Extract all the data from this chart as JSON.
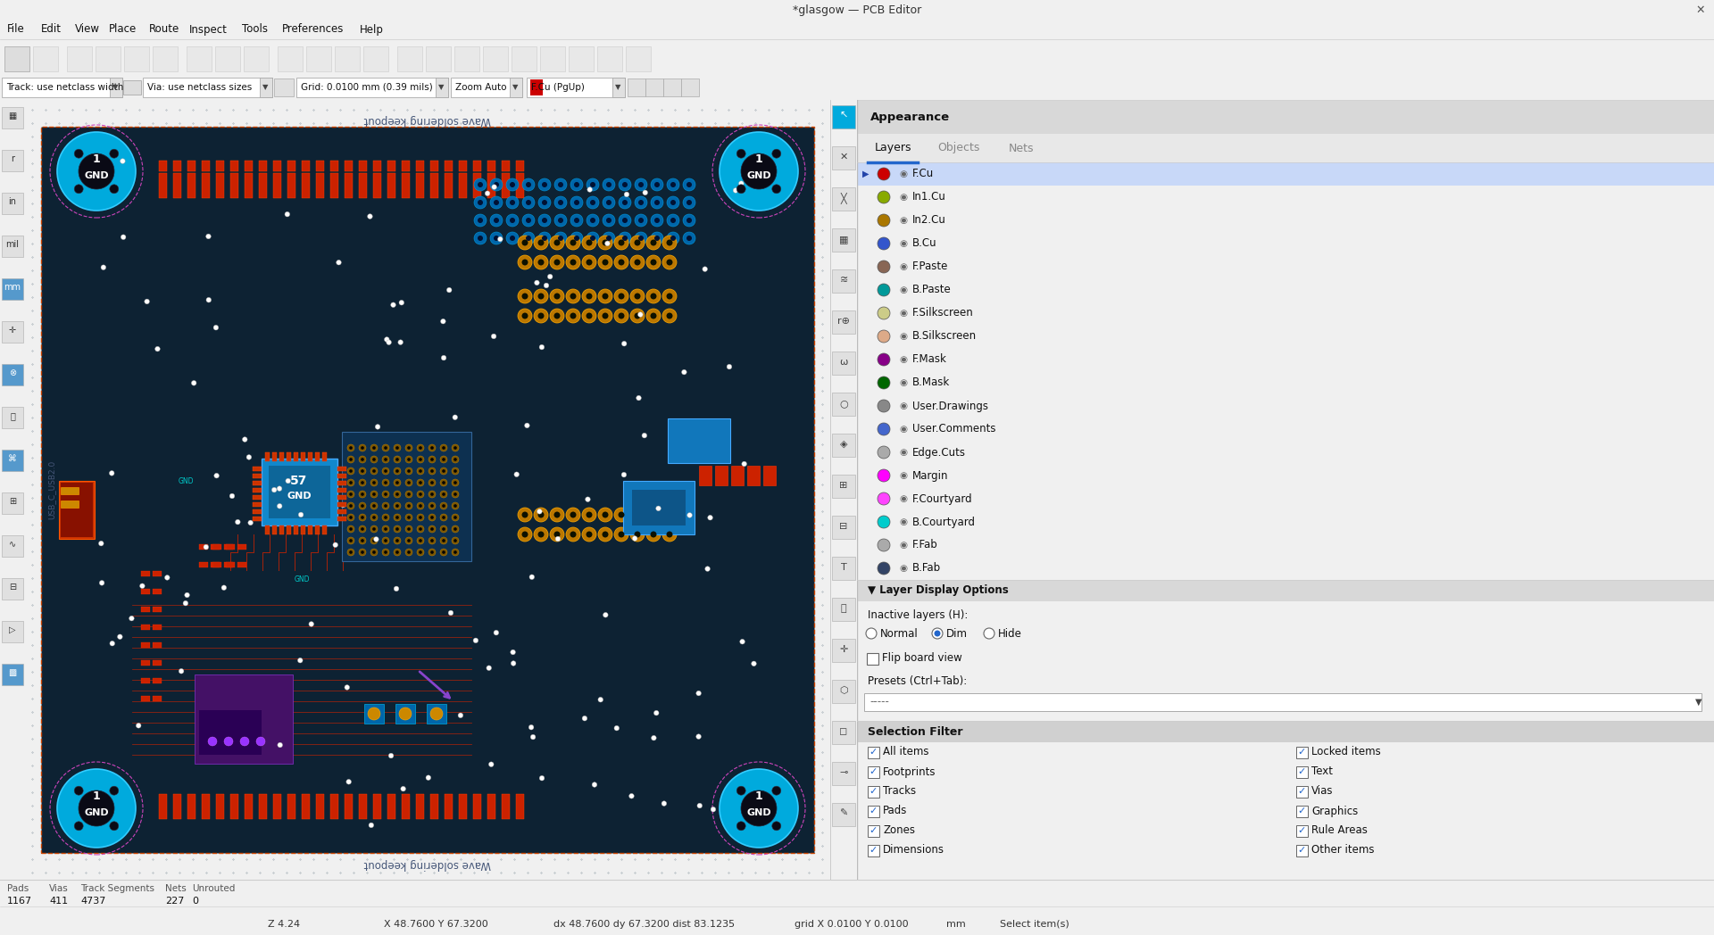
{
  "title": "*glasgow — PCB Editor",
  "bg_color": "#f0f0f0",
  "menu_items": [
    "File",
    "Edit",
    "View",
    "Place",
    "Route",
    "Inspect",
    "Tools",
    "Preferences",
    "Help"
  ],
  "layers": [
    {
      "name": "F.Cu",
      "color": "#cc0000"
    },
    {
      "name": "In1.Cu",
      "color": "#88aa00"
    },
    {
      "name": "In2.Cu",
      "color": "#aa7700"
    },
    {
      "name": "B.Cu",
      "color": "#3355cc"
    },
    {
      "name": "F.Paste",
      "color": "#886655"
    },
    {
      "name": "B.Paste",
      "color": "#009999"
    },
    {
      "name": "F.Silkscreen",
      "color": "#cccc88"
    },
    {
      "name": "B.Silkscreen",
      "color": "#ddaa88"
    },
    {
      "name": "F.Mask",
      "color": "#880088"
    },
    {
      "name": "B.Mask",
      "color": "#006600"
    },
    {
      "name": "User.Drawings",
      "color": "#888888"
    },
    {
      "name": "User.Comments",
      "color": "#4466cc"
    },
    {
      "name": "Edge.Cuts",
      "color": "#aaaaaa"
    },
    {
      "name": "Margin",
      "color": "#ff00ff"
    },
    {
      "name": "F.Courtyard",
      "color": "#ff44ff"
    },
    {
      "name": "B.Courtyard",
      "color": "#00cccc"
    },
    {
      "name": "F.Fab",
      "color": "#aaaaaa"
    },
    {
      "name": "B.Fab",
      "color": "#334466"
    }
  ],
  "selection_filter": [
    [
      "All items",
      "Locked items"
    ],
    [
      "Footprints",
      "Text"
    ],
    [
      "Tracks",
      "Vias"
    ],
    [
      "Pads",
      "Graphics"
    ],
    [
      "Zones",
      "Rule Areas"
    ],
    [
      "Dimensions",
      "Other items"
    ]
  ],
  "status_pads": "1167",
  "status_vias": "411",
  "status_tracks": "4737",
  "status_nets": "227",
  "status_unrouted": "0",
  "status_z": "Z 4.24",
  "status_xy": "X 48.7600 Y 67.3200",
  "status_dxy": "dx 48.7600 dy 67.3200 dist 83.1235",
  "status_grid": "grid X 0.0100 Y 0.0100",
  "status_mm": "mm",
  "status_select": "Select item(s)"
}
